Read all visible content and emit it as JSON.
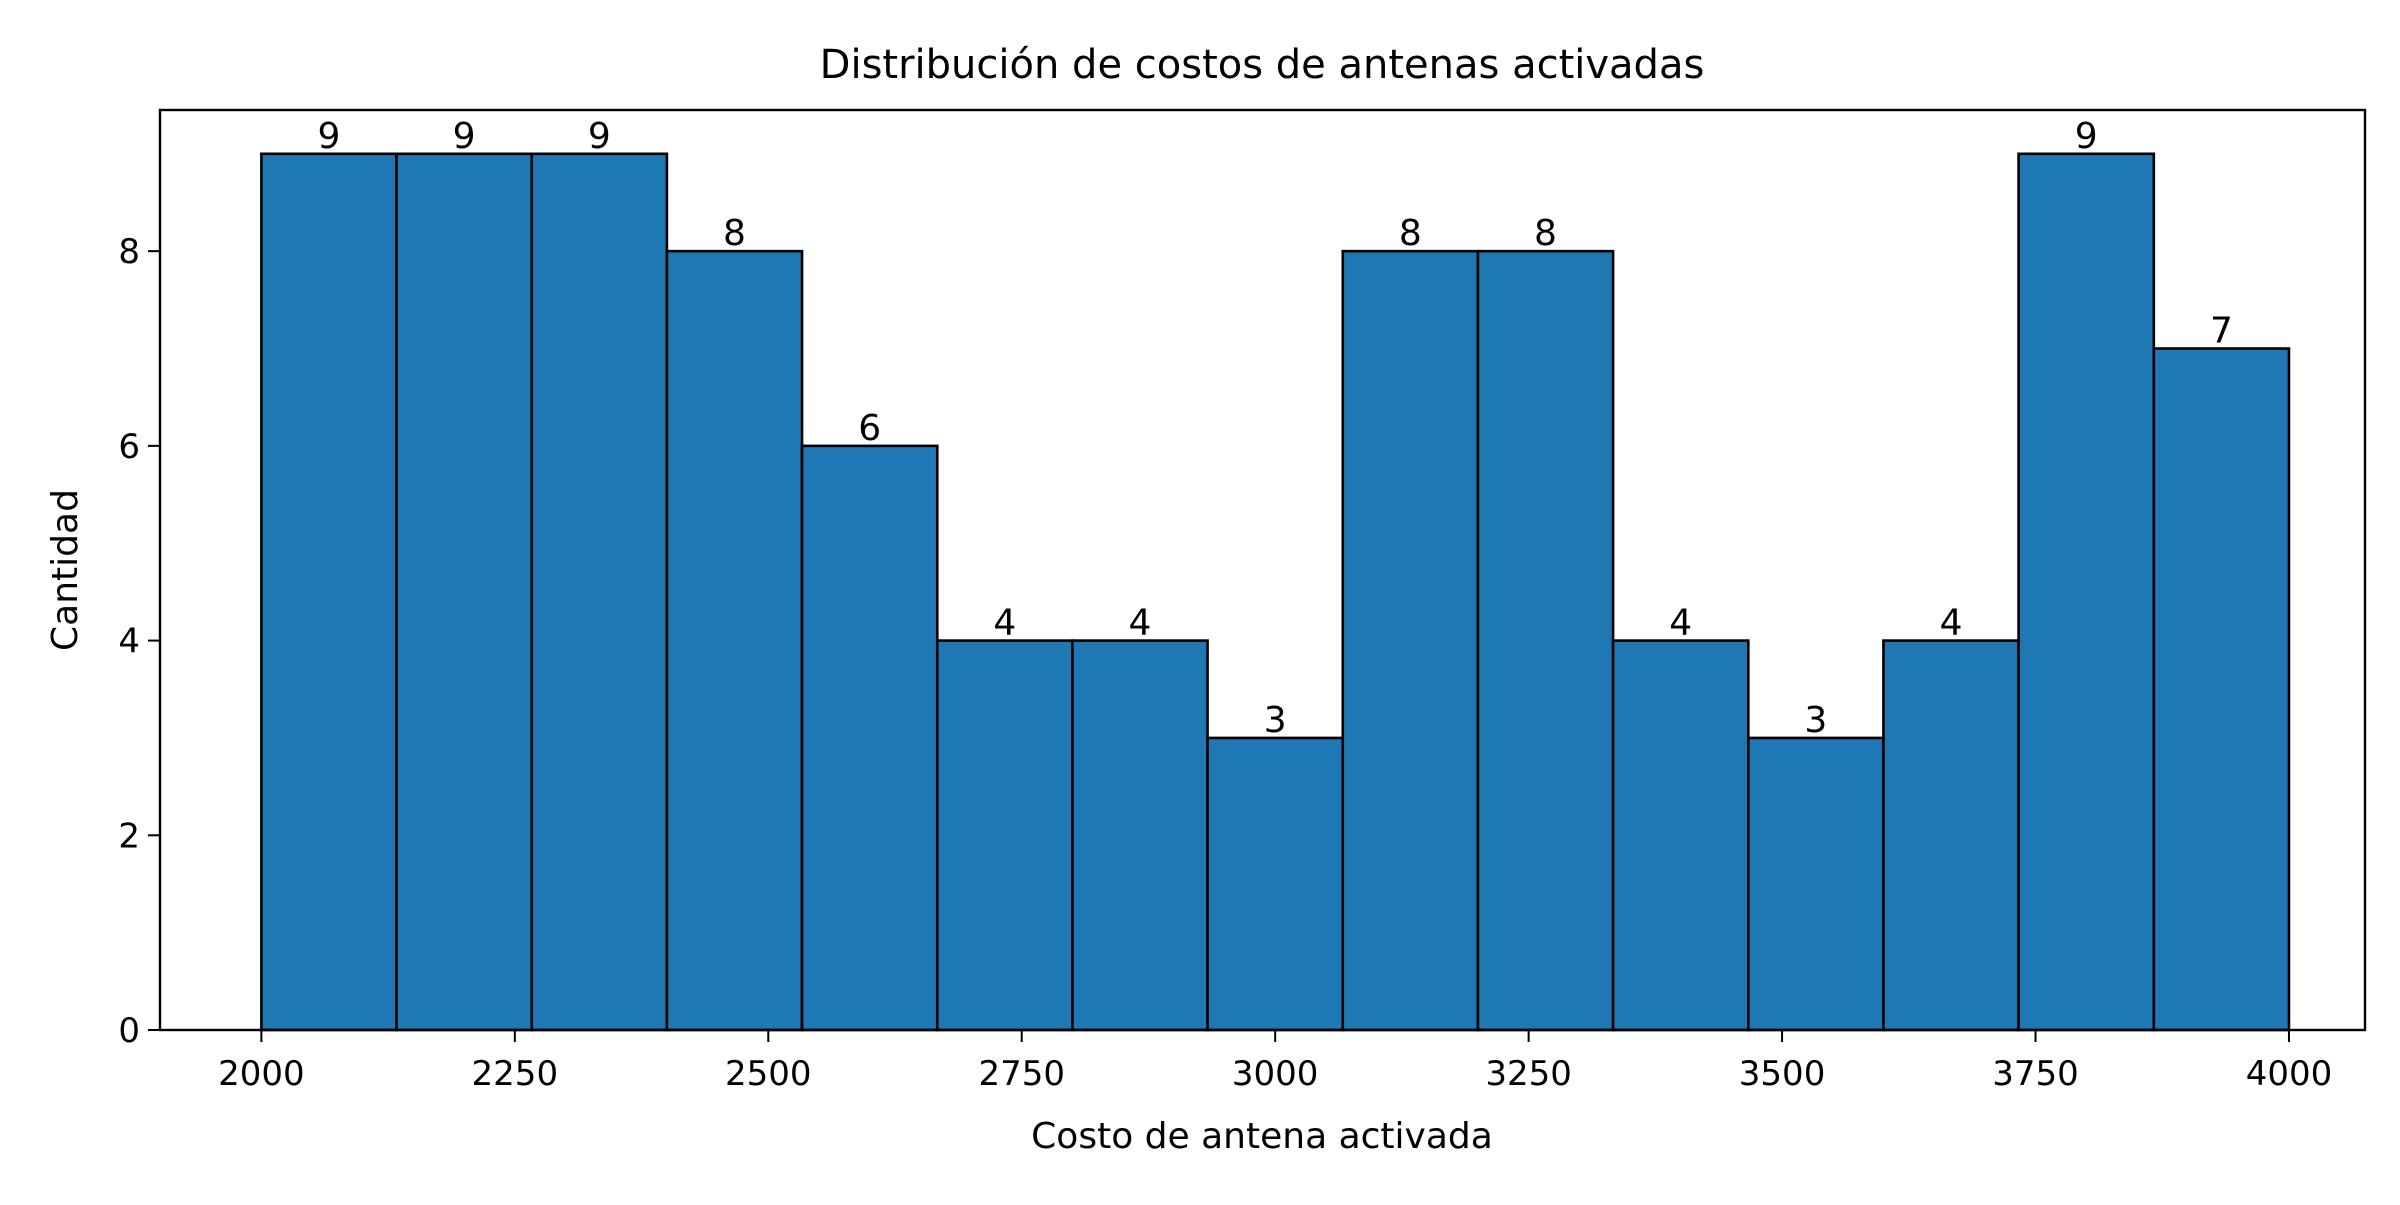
{
  "chart_data": {
    "type": "bar",
    "title": "Distribución de costos de antenas activadas",
    "xlabel": "Costo de antena activada",
    "ylabel": "Cantidad",
    "bin_edges": [
      2000,
      2133.3,
      2266.7,
      2400,
      2533.3,
      2666.7,
      2800,
      2933.3,
      3066.7,
      3200,
      3333.3,
      3466.7,
      3600,
      3733.3,
      3866.7,
      4000
    ],
    "values": [
      9,
      9,
      9,
      8,
      6,
      4,
      4,
      3,
      8,
      8,
      4,
      3,
      4,
      9,
      7
    ],
    "xlim": [
      1900,
      4075
    ],
    "ylim": [
      0,
      9.45
    ],
    "xticks": [
      "2000",
      "2250",
      "2500",
      "2750",
      "3000",
      "3250",
      "3500",
      "3750",
      "4000"
    ],
    "yticks": [
      "0",
      "2",
      "4",
      "6",
      "8"
    ],
    "bar_color": "#1f77b4",
    "edge_color": "#000000",
    "grid": false
  }
}
